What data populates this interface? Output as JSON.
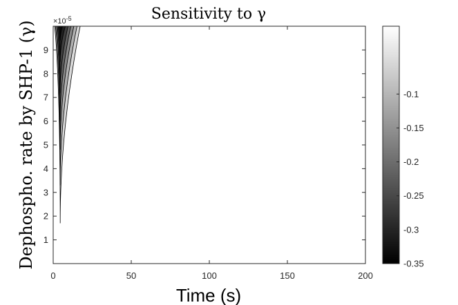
{
  "chart_data": {
    "type": "contour",
    "title": "Sensitivity to γ",
    "xlabel": "Time (s)",
    "ylabel": "Dephospho. rate by SHP-1 (γ)",
    "xlim": [
      0,
      200
    ],
    "ylim": [
      0,
      0.0001
    ],
    "x_ticks": [
      "0",
      "50",
      "100",
      "150",
      "200"
    ],
    "y_ticks": [
      "1",
      "2",
      "3",
      "4",
      "5",
      "6",
      "7",
      "8",
      "9"
    ],
    "y_tick_values": [
      1e-05,
      2e-05,
      3e-05,
      4e-05,
      5e-05,
      6e-05,
      7e-05,
      8e-05,
      9e-05
    ],
    "y_exponent_label": "×10",
    "y_exponent": "-5",
    "colormap": "gray",
    "colorbar": {
      "range": [
        -0.35,
        0
      ],
      "ticks": [
        "-0.1",
        "-0.15",
        "-0.2",
        "-0.25",
        "-0.3",
        "-0.35"
      ],
      "tick_values": [
        -0.1,
        -0.15,
        -0.2,
        -0.25,
        -0.3,
        -0.35
      ]
    },
    "contour_levels": [
      {
        "level": -0.05,
        "t_peak": 4.5,
        "gamma_min": 1.7e-05,
        "t_width_top": 13.5,
        "color": "#d9d9d9"
      },
      {
        "level": -0.1,
        "t_peak": 4.5,
        "gamma_min": 3.3e-05,
        "t_width_top": 11.5,
        "color": "#b0b0b0"
      },
      {
        "level": -0.15,
        "t_peak": 4.5,
        "gamma_min": 4.8e-05,
        "t_width_top": 9.5,
        "color": "#888888"
      },
      {
        "level": -0.2,
        "t_peak": 4.5,
        "gamma_min": 6e-05,
        "t_width_top": 7.5,
        "color": "#626262"
      },
      {
        "level": -0.25,
        "t_peak": 4.5,
        "gamma_min": 7.2e-05,
        "t_width_top": 5.8,
        "color": "#3f3f3f"
      },
      {
        "level": -0.3,
        "t_peak": 4.5,
        "gamma_min": 8.5e-05,
        "t_width_top": 4.2,
        "color": "#202020"
      },
      {
        "level": -0.35,
        "t_peak": 4.5,
        "gamma_min": 9.4e-05,
        "t_width_top": 2.6,
        "color": "#0a0a0a"
      }
    ],
    "grid": false
  }
}
